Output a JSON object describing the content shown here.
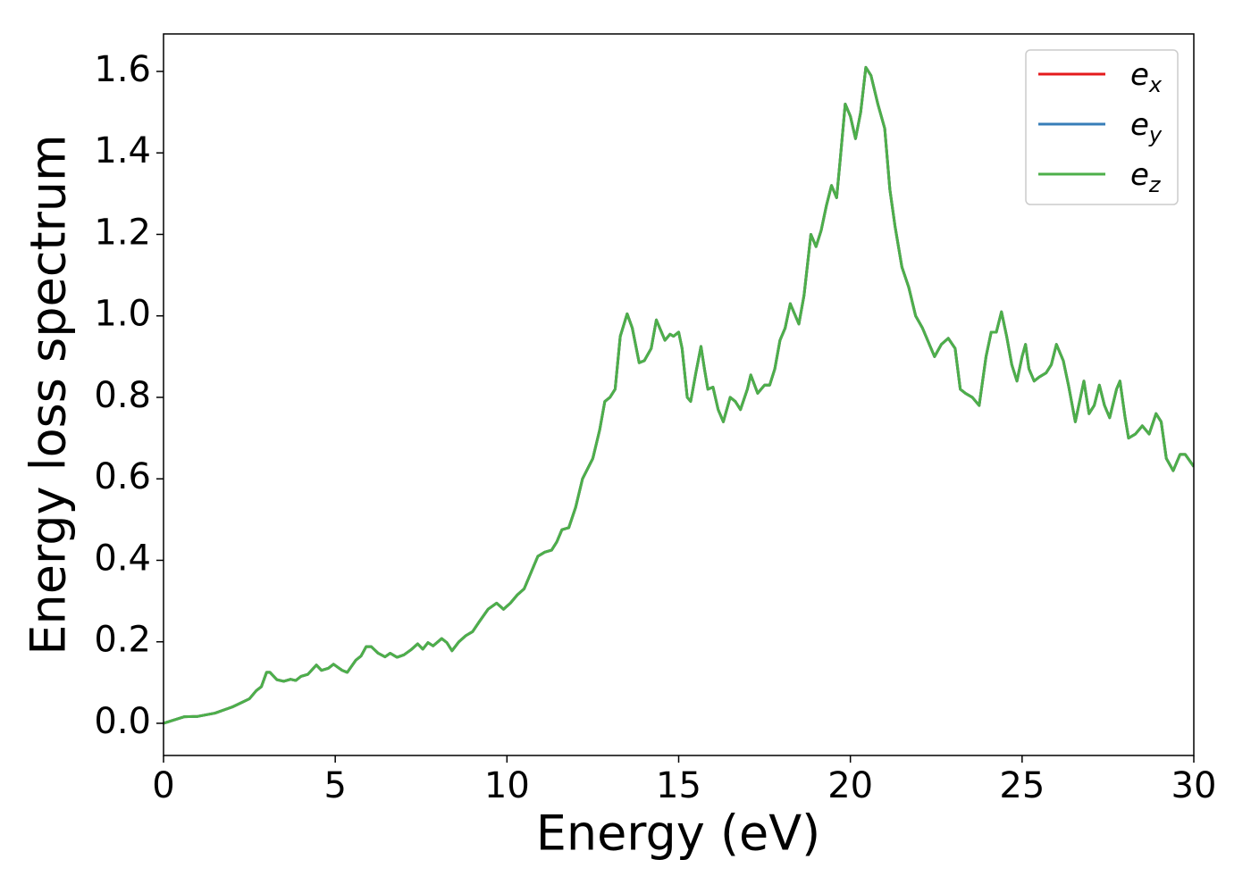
{
  "chart_data": {
    "type": "line",
    "xlabel": "Energy (eV)",
    "ylabel": "Energy loss spectrum",
    "xlim": [
      0,
      30
    ],
    "ylim": [
      -0.079,
      1.692
    ],
    "xticks": [
      0,
      5,
      10,
      15,
      20,
      25,
      30
    ],
    "yticks": [
      {
        "value": 0,
        "label": "0.0"
      },
      0.2,
      0.4,
      0.6,
      0.8,
      {
        "value": 1,
        "label": "1.0"
      },
      1.2,
      1.4,
      1.6
    ],
    "legend": "upper right",
    "x": [
      0,
      0.3,
      0.6,
      1.0,
      1.5,
      2.0,
      2.3,
      2.5,
      2.7,
      2.85,
      3.0,
      3.1,
      3.3,
      3.5,
      3.7,
      3.85,
      4.0,
      4.2,
      4.45,
      4.6,
      4.8,
      4.95,
      5.2,
      5.35,
      5.6,
      5.75,
      5.9,
      6.05,
      6.25,
      6.45,
      6.6,
      6.8,
      7.0,
      7.2,
      7.4,
      7.55,
      7.7,
      7.85,
      8.1,
      8.25,
      8.4,
      8.6,
      8.8,
      9.0,
      9.2,
      9.45,
      9.7,
      9.9,
      10.1,
      10.3,
      10.5,
      10.7,
      10.9,
      11.1,
      11.3,
      11.45,
      11.6,
      11.8,
      12.0,
      12.2,
      12.35,
      12.5,
      12.7,
      12.85,
      13.0,
      13.15,
      13.3,
      13.5,
      13.65,
      13.85,
      14.0,
      14.2,
      14.35,
      14.5,
      14.6,
      14.75,
      14.85,
      15.0,
      15.1,
      15.25,
      15.35,
      15.5,
      15.65,
      15.75,
      15.85,
      16.0,
      16.15,
      16.3,
      16.5,
      16.65,
      16.8,
      17.0,
      17.1,
      17.3,
      17.5,
      17.65,
      17.8,
      17.95,
      18.1,
      18.25,
      18.35,
      18.5,
      18.65,
      18.85,
      19.0,
      19.15,
      19.3,
      19.45,
      19.6,
      19.7,
      19.85,
      20.0,
      20.15,
      20.3,
      20.45,
      20.6,
      20.8,
      21.0,
      21.15,
      21.3,
      21.5,
      21.7,
      21.9,
      22.1,
      22.3,
      22.45,
      22.65,
      22.85,
      23.05,
      23.2,
      23.35,
      23.55,
      23.75,
      23.95,
      24.1,
      24.25,
      24.4,
      24.55,
      24.7,
      24.85,
      25.0,
      25.1,
      25.2,
      25.35,
      25.5,
      25.7,
      25.85,
      26.0,
      26.2,
      26.35,
      26.55,
      26.7,
      26.8,
      26.95,
      27.1,
      27.25,
      27.4,
      27.55,
      27.75,
      27.85,
      28.0,
      28.1,
      28.3,
      28.5,
      28.7,
      28.9,
      29.05,
      29.2,
      29.4,
      29.6,
      29.75,
      30.0
    ],
    "series": [
      {
        "name": "ex",
        "color": "#e41a1c",
        "values": [
          0,
          0.008,
          0.016,
          0.017,
          0.025,
          0.04,
          0.052,
          0.06,
          0.08,
          0.09,
          0.125,
          0.125,
          0.107,
          0.103,
          0.108,
          0.105,
          0.115,
          0.12,
          0.143,
          0.13,
          0.135,
          0.145,
          0.13,
          0.125,
          0.155,
          0.165,
          0.188,
          0.188,
          0.172,
          0.163,
          0.172,
          0.162,
          0.168,
          0.18,
          0.195,
          0.182,
          0.198,
          0.19,
          0.208,
          0.198,
          0.178,
          0.2,
          0.215,
          0.225,
          0.25,
          0.28,
          0.295,
          0.28,
          0.295,
          0.315,
          0.33,
          0.37,
          0.41,
          0.42,
          0.425,
          0.445,
          0.475,
          0.48,
          0.53,
          0.6,
          0.625,
          0.65,
          0.72,
          0.79,
          0.8,
          0.82,
          0.95,
          1.005,
          0.97,
          0.885,
          0.89,
          0.92,
          0.99,
          0.96,
          0.94,
          0.955,
          0.95,
          0.96,
          0.92,
          0.8,
          0.79,
          0.86,
          0.925,
          0.87,
          0.82,
          0.825,
          0.77,
          0.74,
          0.8,
          0.79,
          0.77,
          0.82,
          0.855,
          0.81,
          0.83,
          0.83,
          0.87,
          0.94,
          0.97,
          1.03,
          1.01,
          0.98,
          1.05,
          1.2,
          1.17,
          1.21,
          1.27,
          1.32,
          1.29,
          1.38,
          1.52,
          1.49,
          1.435,
          1.5,
          1.61,
          1.59,
          1.52,
          1.46,
          1.31,
          1.22,
          1.12,
          1.07,
          1.0,
          0.97,
          0.93,
          0.9,
          0.93,
          0.945,
          0.92,
          0.82,
          0.81,
          0.8,
          0.78,
          0.9,
          0.96,
          0.96,
          1.01,
          0.95,
          0.88,
          0.84,
          0.9,
          0.93,
          0.87,
          0.84,
          0.85,
          0.86,
          0.88,
          0.93,
          0.89,
          0.83,
          0.74,
          0.8,
          0.84,
          0.76,
          0.78,
          0.83,
          0.78,
          0.75,
          0.82,
          0.84,
          0.75,
          0.7,
          0.71,
          0.73,
          0.71,
          0.76,
          0.74,
          0.65,
          0.62,
          0.66,
          0.66,
          0.63
        ]
      },
      {
        "name": "ey",
        "color": "#377eb8",
        "values": [
          0,
          0.008,
          0.016,
          0.017,
          0.025,
          0.04,
          0.052,
          0.06,
          0.08,
          0.09,
          0.125,
          0.125,
          0.107,
          0.103,
          0.108,
          0.105,
          0.115,
          0.12,
          0.143,
          0.13,
          0.135,
          0.145,
          0.13,
          0.125,
          0.155,
          0.165,
          0.188,
          0.188,
          0.172,
          0.163,
          0.172,
          0.162,
          0.168,
          0.18,
          0.195,
          0.182,
          0.198,
          0.19,
          0.208,
          0.198,
          0.178,
          0.2,
          0.215,
          0.225,
          0.25,
          0.28,
          0.295,
          0.28,
          0.295,
          0.315,
          0.33,
          0.37,
          0.41,
          0.42,
          0.425,
          0.445,
          0.475,
          0.48,
          0.53,
          0.6,
          0.625,
          0.65,
          0.72,
          0.79,
          0.8,
          0.82,
          0.95,
          1.005,
          0.97,
          0.885,
          0.89,
          0.92,
          0.99,
          0.96,
          0.94,
          0.955,
          0.95,
          0.96,
          0.92,
          0.8,
          0.79,
          0.86,
          0.925,
          0.87,
          0.82,
          0.825,
          0.77,
          0.74,
          0.8,
          0.79,
          0.77,
          0.82,
          0.855,
          0.81,
          0.83,
          0.83,
          0.87,
          0.94,
          0.97,
          1.03,
          1.01,
          0.98,
          1.05,
          1.2,
          1.17,
          1.21,
          1.27,
          1.32,
          1.29,
          1.38,
          1.52,
          1.49,
          1.435,
          1.5,
          1.61,
          1.59,
          1.52,
          1.46,
          1.31,
          1.22,
          1.12,
          1.07,
          1.0,
          0.97,
          0.93,
          0.9,
          0.93,
          0.945,
          0.92,
          0.82,
          0.81,
          0.8,
          0.78,
          0.9,
          0.96,
          0.96,
          1.01,
          0.95,
          0.88,
          0.84,
          0.9,
          0.93,
          0.87,
          0.84,
          0.85,
          0.86,
          0.88,
          0.93,
          0.89,
          0.83,
          0.74,
          0.8,
          0.84,
          0.76,
          0.78,
          0.83,
          0.78,
          0.75,
          0.82,
          0.84,
          0.75,
          0.7,
          0.71,
          0.73,
          0.71,
          0.76,
          0.74,
          0.65,
          0.62,
          0.66,
          0.66,
          0.63
        ]
      },
      {
        "name": "ez",
        "color": "#4daf4a",
        "values": [
          0,
          0.008,
          0.016,
          0.017,
          0.025,
          0.04,
          0.052,
          0.06,
          0.08,
          0.09,
          0.125,
          0.125,
          0.107,
          0.103,
          0.108,
          0.105,
          0.115,
          0.12,
          0.143,
          0.13,
          0.135,
          0.145,
          0.13,
          0.125,
          0.155,
          0.165,
          0.188,
          0.188,
          0.172,
          0.163,
          0.172,
          0.162,
          0.168,
          0.18,
          0.195,
          0.182,
          0.198,
          0.19,
          0.208,
          0.198,
          0.178,
          0.2,
          0.215,
          0.225,
          0.25,
          0.28,
          0.295,
          0.28,
          0.295,
          0.315,
          0.33,
          0.37,
          0.41,
          0.42,
          0.425,
          0.445,
          0.475,
          0.48,
          0.53,
          0.6,
          0.625,
          0.65,
          0.72,
          0.79,
          0.8,
          0.82,
          0.95,
          1.005,
          0.97,
          0.885,
          0.89,
          0.92,
          0.99,
          0.96,
          0.94,
          0.955,
          0.95,
          0.96,
          0.92,
          0.8,
          0.79,
          0.86,
          0.925,
          0.87,
          0.82,
          0.825,
          0.77,
          0.74,
          0.8,
          0.79,
          0.77,
          0.82,
          0.855,
          0.81,
          0.83,
          0.83,
          0.87,
          0.94,
          0.97,
          1.03,
          1.01,
          0.98,
          1.05,
          1.2,
          1.17,
          1.21,
          1.27,
          1.32,
          1.29,
          1.38,
          1.52,
          1.49,
          1.435,
          1.5,
          1.61,
          1.59,
          1.52,
          1.46,
          1.31,
          1.22,
          1.12,
          1.07,
          1.0,
          0.97,
          0.93,
          0.9,
          0.93,
          0.945,
          0.92,
          0.82,
          0.81,
          0.8,
          0.78,
          0.9,
          0.96,
          0.96,
          1.01,
          0.95,
          0.88,
          0.84,
          0.9,
          0.93,
          0.87,
          0.84,
          0.85,
          0.86,
          0.88,
          0.93,
          0.89,
          0.83,
          0.74,
          0.8,
          0.84,
          0.76,
          0.78,
          0.83,
          0.78,
          0.75,
          0.82,
          0.84,
          0.75,
          0.7,
          0.71,
          0.73,
          0.71,
          0.76,
          0.74,
          0.65,
          0.62,
          0.66,
          0.66,
          0.63
        ]
      }
    ]
  }
}
